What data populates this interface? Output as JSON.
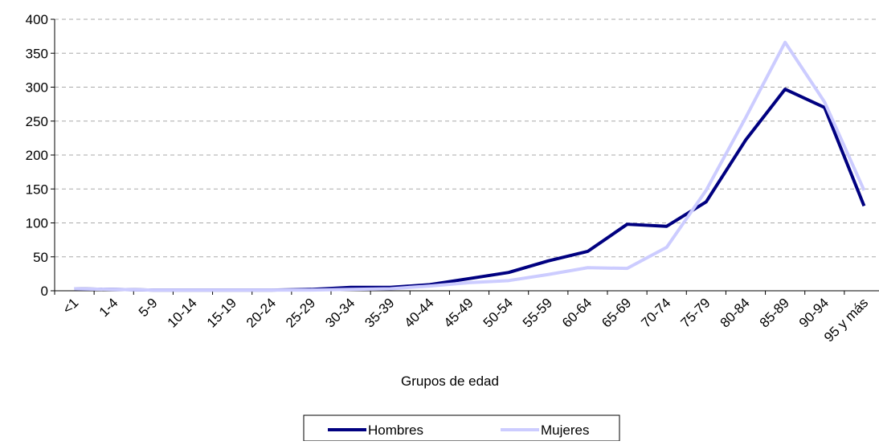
{
  "chart_data": {
    "type": "line",
    "x_label": "Grupos de edad",
    "categories": [
      "<1",
      "1-4",
      "5-9",
      "10-14",
      "15-19",
      "20-24",
      "25-29",
      "30-34",
      "35-39",
      "40-44",
      "45-49",
      "50-54",
      "55-59",
      "60-64",
      "65-69",
      "70-74",
      "75-79",
      "80-84",
      "85-89",
      "90-94",
      "95 y más"
    ],
    "series": [
      {
        "name": "Hombres",
        "color": "#000080",
        "values": [
          3,
          2,
          1,
          1,
          1,
          1,
          2,
          5,
          5,
          9,
          18,
          27,
          44,
          58,
          98,
          95,
          131,
          222,
          297,
          270,
          125
        ]
      },
      {
        "name": "Mujeres",
        "color": "#ccccff",
        "values": [
          3,
          2,
          1,
          1,
          1,
          1,
          1,
          2,
          3,
          7,
          12,
          15,
          24,
          34,
          33,
          64,
          148,
          255,
          366,
          278,
          148
        ]
      }
    ],
    "ylim": [
      0,
      400
    ],
    "yticks": [
      0,
      50,
      100,
      150,
      200,
      250,
      300,
      350,
      400
    ],
    "grid": true,
    "legend": "bottom"
  }
}
